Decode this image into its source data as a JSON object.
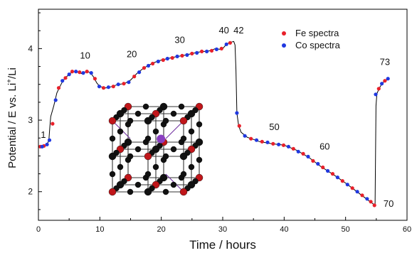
{
  "chart_data": {
    "type": "scatter",
    "xlabel": "Time / hours",
    "ylabel_parts": [
      "Potential / E vs. Li",
      "+",
      "/Li"
    ],
    "xlim": [
      0,
      60
    ],
    "ylim": [
      1.6,
      4.55
    ],
    "x_ticks": [
      0,
      10,
      20,
      30,
      40,
      50,
      60
    ],
    "y_ticks": [
      2,
      3,
      4
    ],
    "grid": false,
    "legend_position": "top-right",
    "colors": {
      "fe": "#e8202a",
      "co": "#2038e0",
      "line": "#000000"
    },
    "curve": [
      [
        0.0,
        2.63
      ],
      [
        1.0,
        2.64
      ],
      [
        1.5,
        2.68
      ],
      [
        1.7,
        2.72
      ],
      [
        1.85,
        2.9
      ],
      [
        2.0,
        3.05
      ],
      [
        2.5,
        3.2
      ],
      [
        3.0,
        3.38
      ],
      [
        3.5,
        3.47
      ],
      [
        4.0,
        3.55
      ],
      [
        4.5,
        3.6
      ],
      [
        5.0,
        3.64
      ],
      [
        5.6,
        3.68
      ],
      [
        6.5,
        3.67
      ],
      [
        7.0,
        3.65
      ],
      [
        7.5,
        3.67
      ],
      [
        8.0,
        3.68
      ],
      [
        8.5,
        3.66
      ],
      [
        9.0,
        3.6
      ],
      [
        9.5,
        3.52
      ],
      [
        10.0,
        3.47
      ],
      [
        11.0,
        3.45
      ],
      [
        12.0,
        3.47
      ],
      [
        13.0,
        3.5
      ],
      [
        14.0,
        3.51
      ],
      [
        15.0,
        3.56
      ],
      [
        16.0,
        3.65
      ],
      [
        17.0,
        3.72
      ],
      [
        18.0,
        3.77
      ],
      [
        19.0,
        3.81
      ],
      [
        20.0,
        3.84
      ],
      [
        22.0,
        3.88
      ],
      [
        24.0,
        3.91
      ],
      [
        26.0,
        3.95
      ],
      [
        28.0,
        3.97
      ],
      [
        28.8,
        4.0
      ],
      [
        29.5,
        3.99
      ],
      [
        30.0,
        4.0
      ],
      [
        30.5,
        4.05
      ],
      [
        31.0,
        4.08
      ],
      [
        31.8,
        4.1
      ],
      [
        32.0,
        4.05
      ],
      [
        32.15,
        3.7
      ],
      [
        32.3,
        3.1
      ],
      [
        32.6,
        2.92
      ],
      [
        33.0,
        2.83
      ],
      [
        34.0,
        2.76
      ],
      [
        35.0,
        2.73
      ],
      [
        36.0,
        2.7
      ],
      [
        38.0,
        2.67
      ],
      [
        40.0,
        2.65
      ],
      [
        42.0,
        2.58
      ],
      [
        44.0,
        2.48
      ],
      [
        46.0,
        2.35
      ],
      [
        48.0,
        2.24
      ],
      [
        50.0,
        2.12
      ],
      [
        52.0,
        1.99
      ],
      [
        54.0,
        1.86
      ],
      [
        54.8,
        1.81
      ],
      [
        54.95,
        3.2
      ],
      [
        55.1,
        3.37
      ],
      [
        55.5,
        3.45
      ],
      [
        56.0,
        3.52
      ],
      [
        57.0,
        3.58
      ]
    ],
    "series": [
      {
        "name": "Fe spectra",
        "color": "#e8202a",
        "points": [
          [
            0.3,
            2.63
          ],
          [
            0.9,
            2.64
          ],
          [
            2.3,
            2.95
          ],
          [
            3.3,
            3.45
          ],
          [
            4.4,
            3.59
          ],
          [
            5.5,
            3.68
          ],
          [
            6.7,
            3.67
          ],
          [
            7.9,
            3.68
          ],
          [
            9.2,
            3.58
          ],
          [
            10.6,
            3.45
          ],
          [
            12.2,
            3.47
          ],
          [
            13.9,
            3.51
          ],
          [
            15.6,
            3.61
          ],
          [
            17.2,
            3.73
          ],
          [
            18.6,
            3.79
          ],
          [
            20.3,
            3.84
          ],
          [
            21.8,
            3.87
          ],
          [
            23.4,
            3.9
          ],
          [
            25.0,
            3.93
          ],
          [
            26.6,
            3.96
          ],
          [
            28.2,
            3.97
          ],
          [
            29.8,
            4.0
          ],
          [
            31.2,
            4.08
          ],
          [
            32.7,
            2.92
          ],
          [
            34.6,
            2.74
          ],
          [
            36.4,
            2.7
          ],
          [
            38.2,
            2.67
          ],
          [
            39.9,
            2.65
          ],
          [
            41.5,
            2.6
          ],
          [
            43.1,
            2.53
          ],
          [
            44.7,
            2.43
          ],
          [
            46.3,
            2.34
          ],
          [
            47.9,
            2.25
          ],
          [
            49.5,
            2.15
          ],
          [
            51.1,
            2.05
          ],
          [
            52.7,
            1.95
          ],
          [
            54.1,
            1.86
          ],
          [
            54.7,
            1.81
          ],
          [
            55.4,
            3.44
          ],
          [
            56.4,
            3.55
          ]
        ]
      },
      {
        "name": "Co spectra",
        "color": "#2038e0",
        "points": [
          [
            0.6,
            2.63
          ],
          [
            1.4,
            2.66
          ],
          [
            1.8,
            2.72
          ],
          [
            2.8,
            3.28
          ],
          [
            3.9,
            3.55
          ],
          [
            5.0,
            3.64
          ],
          [
            6.1,
            3.68
          ],
          [
            7.3,
            3.66
          ],
          [
            8.6,
            3.66
          ],
          [
            9.9,
            3.47
          ],
          [
            11.4,
            3.46
          ],
          [
            13.0,
            3.5
          ],
          [
            14.7,
            3.53
          ],
          [
            16.4,
            3.67
          ],
          [
            17.9,
            3.76
          ],
          [
            19.5,
            3.82
          ],
          [
            21.0,
            3.86
          ],
          [
            22.6,
            3.89
          ],
          [
            24.2,
            3.91
          ],
          [
            25.8,
            3.94
          ],
          [
            27.4,
            3.96
          ],
          [
            29.0,
            3.99
          ],
          [
            30.6,
            4.06
          ],
          [
            32.3,
            3.1
          ],
          [
            33.6,
            2.78
          ],
          [
            35.5,
            2.72
          ],
          [
            37.3,
            2.69
          ],
          [
            39.1,
            2.66
          ],
          [
            40.7,
            2.63
          ],
          [
            42.3,
            2.56
          ],
          [
            43.9,
            2.49
          ],
          [
            45.5,
            2.39
          ],
          [
            47.1,
            2.29
          ],
          [
            48.7,
            2.2
          ],
          [
            50.3,
            2.1
          ],
          [
            51.9,
            2.0
          ],
          [
            53.5,
            1.9
          ],
          [
            54.9,
            3.36
          ],
          [
            55.9,
            3.51
          ],
          [
            56.9,
            3.58
          ]
        ]
      }
    ],
    "annotations": [
      {
        "text": "1",
        "x": 0.8,
        "y": 2.75
      },
      {
        "text": "10",
        "x": 7.6,
        "y": 3.86
      },
      {
        "text": "20",
        "x": 15.2,
        "y": 3.88
      },
      {
        "text": "30",
        "x": 23.0,
        "y": 4.08
      },
      {
        "text": "40",
        "x": 30.2,
        "y": 4.21
      },
      {
        "text": "42",
        "x": 32.6,
        "y": 4.21
      },
      {
        "text": "50",
        "x": 38.4,
        "y": 2.86
      },
      {
        "text": "60",
        "x": 46.6,
        "y": 2.59
      },
      {
        "text": "70",
        "x": 57.0,
        "y": 1.79
      },
      {
        "text": "73",
        "x": 56.4,
        "y": 3.77
      }
    ]
  }
}
